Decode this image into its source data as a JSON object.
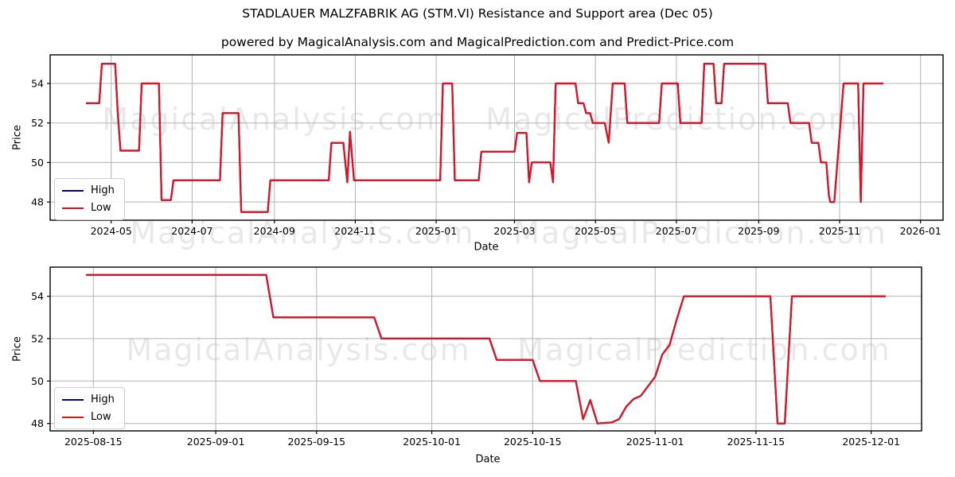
{
  "header": {
    "title": "STADLAUER MALZFABRIK AG (STM.VI) Resistance and Support area (Dec 05)",
    "subtitle": "powered by MagicalAnalysis.com and MagicalPrediction.com and Predict-Price.com"
  },
  "legend": {
    "high_label": "High",
    "low_label": "Low"
  },
  "axis_labels": {
    "x": "Date",
    "y": "Price"
  },
  "watermarks": {
    "left": "MagicalAnalysis.com",
    "right": "MagicalPrediction.com"
  },
  "colors": {
    "high": "#00008b",
    "low": "#e3121f",
    "grid": "#b3b3b3",
    "spine": "#000000",
    "text": "#000000"
  },
  "chart_data": [
    {
      "type": "line",
      "title": "STADLAUER MALZFABRIK AG (STM.VI) Resistance and Support area (Dec 05)",
      "xlabel": "Date",
      "ylabel": "Price",
      "grid": true,
      "legend_entries": [
        "High",
        "Low"
      ],
      "legend_position": "lower left",
      "x_range": [
        "2024-03-16",
        "2026-01-18"
      ],
      "y_range": [
        47.08,
        55.45
      ],
      "x_ticks": [
        {
          "date": "2024-05-01",
          "label": "2024-05"
        },
        {
          "date": "2024-07-01",
          "label": "2024-07"
        },
        {
          "date": "2024-09-01",
          "label": "2024-09"
        },
        {
          "date": "2024-11-01",
          "label": "2024-11"
        },
        {
          "date": "2025-01-01",
          "label": "2025-01"
        },
        {
          "date": "2025-03-01",
          "label": "2025-03"
        },
        {
          "date": "2025-05-01",
          "label": "2025-05"
        },
        {
          "date": "2025-07-01",
          "label": "2025-07"
        },
        {
          "date": "2025-09-01",
          "label": "2025-09"
        },
        {
          "date": "2025-11-01",
          "label": "2025-11"
        },
        {
          "date": "2026-01-01",
          "label": "2026-01"
        }
      ],
      "y_ticks": [
        {
          "value": 48,
          "label": "48"
        },
        {
          "value": 50,
          "label": "50"
        },
        {
          "value": 52,
          "label": "52"
        },
        {
          "value": 54,
          "label": "54"
        }
      ],
      "series": [
        {
          "name": "High",
          "color_key": "high",
          "points": "same_as_low"
        },
        {
          "name": "Low",
          "color_key": "low",
          "points": [
            [
              "2024-04-12",
              53.0
            ],
            [
              "2024-04-22",
              53.0
            ],
            [
              "2024-04-24",
              55.0
            ],
            [
              "2024-05-04",
              55.0
            ],
            [
              "2024-05-06",
              52.5
            ],
            [
              "2024-05-08",
              50.6
            ],
            [
              "2024-05-22",
              50.6
            ],
            [
              "2024-05-24",
              54.0
            ],
            [
              "2024-06-06",
              54.0
            ],
            [
              "2024-06-08",
              48.1
            ],
            [
              "2024-06-15",
              48.1
            ],
            [
              "2024-06-17",
              49.1
            ],
            [
              "2024-07-22",
              49.1
            ],
            [
              "2024-07-24",
              52.5
            ],
            [
              "2024-08-05",
              52.5
            ],
            [
              "2024-08-07",
              47.5
            ],
            [
              "2024-08-27",
              47.5
            ],
            [
              "2024-08-29",
              49.1
            ],
            [
              "2024-10-12",
              49.1
            ],
            [
              "2024-10-14",
              51.0
            ],
            [
              "2024-10-23",
              51.0
            ],
            [
              "2024-10-26",
              49.0
            ],
            [
              "2024-10-28",
              51.55
            ],
            [
              "2024-10-31",
              49.1
            ],
            [
              "2025-01-04",
              49.1
            ],
            [
              "2025-01-06",
              54.0
            ],
            [
              "2025-01-13",
              54.0
            ],
            [
              "2025-01-15",
              49.1
            ],
            [
              "2025-02-02",
              49.1
            ],
            [
              "2025-02-04",
              50.55
            ],
            [
              "2025-03-01",
              50.55
            ],
            [
              "2025-03-03",
              51.5
            ],
            [
              "2025-03-10",
              51.5
            ],
            [
              "2025-03-12",
              49.0
            ],
            [
              "2025-03-14",
              50.0
            ],
            [
              "2025-03-28",
              50.0
            ],
            [
              "2025-03-30",
              49.0
            ],
            [
              "2025-04-01",
              54.0
            ],
            [
              "2025-04-16",
              54.0
            ],
            [
              "2025-04-18",
              53.0
            ],
            [
              "2025-04-22",
              53.0
            ],
            [
              "2025-04-24",
              52.5
            ],
            [
              "2025-04-27",
              52.5
            ],
            [
              "2025-04-29",
              52.0
            ],
            [
              "2025-05-08",
              52.0
            ],
            [
              "2025-05-11",
              51.0
            ],
            [
              "2025-05-14",
              54.0
            ],
            [
              "2025-05-23",
              54.0
            ],
            [
              "2025-05-25",
              52.0
            ],
            [
              "2025-06-18",
              52.0
            ],
            [
              "2025-06-20",
              54.0
            ],
            [
              "2025-07-02",
              54.0
            ],
            [
              "2025-07-04",
              52.0
            ],
            [
              "2025-07-20",
              52.0
            ],
            [
              "2025-07-22",
              55.0
            ],
            [
              "2025-07-29",
              55.0
            ],
            [
              "2025-07-31",
              53.0
            ],
            [
              "2025-08-04",
              53.0
            ],
            [
              "2025-08-06",
              55.0
            ],
            [
              "2025-09-06",
              55.0
            ],
            [
              "2025-09-08",
              53.0
            ],
            [
              "2025-09-23",
              53.0
            ],
            [
              "2025-09-25",
              52.0
            ],
            [
              "2025-10-09",
              52.0
            ],
            [
              "2025-10-11",
              51.0
            ],
            [
              "2025-10-16",
              51.0
            ],
            [
              "2025-10-18",
              50.0
            ],
            [
              "2025-10-22",
              50.0
            ],
            [
              "2025-10-24",
              48.3
            ],
            [
              "2025-10-25",
              48.0
            ],
            [
              "2025-10-28",
              48.0
            ],
            [
              "2025-11-04",
              54.0
            ],
            [
              "2025-11-15",
              54.0
            ],
            [
              "2025-11-17",
              48.0
            ],
            [
              "2025-11-19",
              54.0
            ],
            [
              "2025-12-04",
              54.0
            ]
          ]
        }
      ]
    },
    {
      "type": "line",
      "title": "",
      "xlabel": "Date",
      "ylabel": "Price",
      "grid": true,
      "legend_entries": [
        "High",
        "Low"
      ],
      "legend_position": "lower left",
      "x_range": [
        "2025-08-09",
        "2025-12-08"
      ],
      "y_range": [
        47.65,
        55.37
      ],
      "x_ticks": [
        {
          "date": "2025-08-15",
          "label": "2025-08-15"
        },
        {
          "date": "2025-09-01",
          "label": "2025-09-01"
        },
        {
          "date": "2025-09-15",
          "label": "2025-09-15"
        },
        {
          "date": "2025-10-01",
          "label": "2025-10-01"
        },
        {
          "date": "2025-10-15",
          "label": "2025-10-15"
        },
        {
          "date": "2025-11-01",
          "label": "2025-11-01"
        },
        {
          "date": "2025-11-15",
          "label": "2025-11-15"
        },
        {
          "date": "2025-12-01",
          "label": "2025-12-01"
        }
      ],
      "y_ticks": [
        {
          "value": 48,
          "label": "48"
        },
        {
          "value": 50,
          "label": "50"
        },
        {
          "value": 52,
          "label": "52"
        },
        {
          "value": 54,
          "label": "54"
        }
      ],
      "series": [
        {
          "name": "High",
          "color_key": "high",
          "points": "same_as_low"
        },
        {
          "name": "Low",
          "color_key": "low",
          "points": [
            [
              "2025-08-14",
              55.0
            ],
            [
              "2025-09-08",
              55.0
            ],
            [
              "2025-09-09",
              53.0
            ],
            [
              "2025-09-23",
              53.0
            ],
            [
              "2025-09-24",
              52.0
            ],
            [
              "2025-10-09",
              52.0
            ],
            [
              "2025-10-10",
              51.0
            ],
            [
              "2025-10-15",
              51.0
            ],
            [
              "2025-10-16",
              50.0
            ],
            [
              "2025-10-21",
              50.0
            ],
            [
              "2025-10-22",
              48.2
            ],
            [
              "2025-10-23",
              49.1
            ],
            [
              "2025-10-24",
              48.0
            ],
            [
              "2025-10-26",
              48.05
            ],
            [
              "2025-10-27",
              48.2
            ],
            [
              "2025-10-28",
              48.8
            ],
            [
              "2025-10-29",
              49.15
            ],
            [
              "2025-10-30",
              49.3
            ],
            [
              "2025-11-01",
              50.2
            ],
            [
              "2025-11-02",
              51.25
            ],
            [
              "2025-11-03",
              51.7
            ],
            [
              "2025-11-04",
              52.9
            ],
            [
              "2025-11-05",
              54.0
            ],
            [
              "2025-11-17",
              54.0
            ],
            [
              "2025-11-18",
              48.0
            ],
            [
              "2025-11-19",
              48.0
            ],
            [
              "2025-11-20",
              54.0
            ],
            [
              "2025-12-03",
              54.0
            ]
          ]
        }
      ]
    }
  ]
}
